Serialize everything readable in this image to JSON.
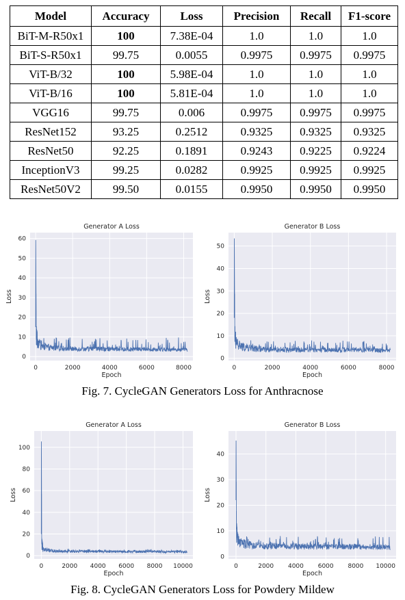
{
  "table": {
    "headers": [
      "Model",
      "Accuracy",
      "Loss",
      "Precision",
      "Recall",
      "F1-score"
    ],
    "rows": [
      {
        "model": "BiT-M-R50x1",
        "accuracy": "100",
        "loss": "7.38E-04",
        "precision": "1.0",
        "recall": "1.0",
        "f1": "1.0",
        "bold_acc": true
      },
      {
        "model": "BiT-S-R50x1",
        "accuracy": "99.75",
        "loss": "0.0055",
        "precision": "0.9975",
        "recall": "0.9975",
        "f1": "0.9975",
        "bold_acc": false
      },
      {
        "model": "ViT-B/32",
        "accuracy": "100",
        "loss": "5.98E-04",
        "precision": "1.0",
        "recall": "1.0",
        "f1": "1.0",
        "bold_acc": true
      },
      {
        "model": "ViT-B/16",
        "accuracy": "100",
        "loss": "5.81E-04",
        "precision": "1.0",
        "recall": "1.0",
        "f1": "1.0",
        "bold_acc": true
      },
      {
        "model": "VGG16",
        "accuracy": "99.75",
        "loss": "0.006",
        "precision": "0.9975",
        "recall": "0.9975",
        "f1": "0.9975",
        "bold_acc": false
      },
      {
        "model": "ResNet152",
        "accuracy": "93.25",
        "loss": "0.2512",
        "precision": "0.9325",
        "recall": "0.9325",
        "f1": "0.9325",
        "bold_acc": false
      },
      {
        "model": "ResNet50",
        "accuracy": "92.25",
        "loss": "0.1891",
        "precision": "0.9243",
        "recall": "0.9225",
        "f1": "0.9224",
        "bold_acc": false
      },
      {
        "model": "InceptionV3",
        "accuracy": "99.25",
        "loss": "0.0282",
        "precision": "0.9925",
        "recall": "0.9925",
        "f1": "0.9925",
        "bold_acc": false
      },
      {
        "model": "ResNet50V2",
        "accuracy": "99.50",
        "loss": "0.0155",
        "precision": "0.9950",
        "recall": "0.9950",
        "f1": "0.9950",
        "bold_acc": false
      }
    ]
  },
  "figures": {
    "fig7_caption": "Fig. 7.  CycleGAN Generators Loss for Anthracnose",
    "fig8_caption": "Fig. 8.  CycleGAN Generators Loss for Powdery Mildew"
  },
  "colors": {
    "line": "#4c72b0",
    "panel": "#eaeaf2",
    "grid": "#ffffff",
    "text": "#262626"
  },
  "chart_data": [
    {
      "type": "line",
      "title": "Generator A Loss",
      "xlabel": "Epoch",
      "ylabel": "Loss",
      "xlim": [
        -300,
        8500
      ],
      "ylim": [
        -2,
        63
      ],
      "xticks": [
        0,
        2000,
        4000,
        6000,
        8000
      ],
      "yticks": [
        0,
        10,
        20,
        30,
        40,
        50,
        60
      ],
      "grid": true,
      "series": [
        {
          "x": [
            0,
            5,
            30,
            100,
            300,
            600,
            1000,
            2000,
            3000,
            4000,
            5000,
            6000,
            7000,
            8000,
            8200
          ],
          "values": [
            15,
            60,
            12,
            8,
            6,
            5,
            4.5,
            4,
            4,
            4,
            3.8,
            3.8,
            3.8,
            3.6,
            3.5
          ],
          "noise_band": [
            2,
            10
          ]
        }
      ]
    },
    {
      "type": "line",
      "title": "Generator B Loss",
      "xlabel": "Epoch",
      "ylabel": "Loss",
      "xlim": [
        -300,
        8500
      ],
      "ylim": [
        -1,
        56
      ],
      "xticks": [
        0,
        2000,
        4000,
        6000,
        8000
      ],
      "yticks": [
        0,
        10,
        20,
        30,
        40,
        50
      ],
      "grid": true,
      "series": [
        {
          "x": [
            0,
            5,
            30,
            100,
            300,
            600,
            1000,
            2000,
            3000,
            4000,
            5000,
            6000,
            7000,
            8000,
            8200
          ],
          "values": [
            18,
            54,
            11,
            7,
            5.5,
            5,
            4.5,
            4,
            4,
            3.8,
            3.8,
            3.8,
            3.8,
            3.6,
            3.5
          ],
          "noise_band": [
            2,
            8
          ]
        }
      ]
    },
    {
      "type": "line",
      "title": "Generator A Loss",
      "xlabel": "Epoch",
      "ylabel": "Loss",
      "xlim": [
        -500,
        10700
      ],
      "ylim": [
        -3,
        115
      ],
      "xticks": [
        0,
        2000,
        4000,
        6000,
        8000,
        10000
      ],
      "yticks": [
        0,
        20,
        40,
        60,
        80,
        100
      ],
      "grid": true,
      "series": [
        {
          "x": [
            0,
            5,
            30,
            100,
            300,
            600,
            1000,
            2000,
            4000,
            6000,
            8000,
            10000,
            10300
          ],
          "values": [
            20,
            110,
            12,
            8,
            6,
            5,
            4.5,
            4.2,
            4,
            3.8,
            3.8,
            3.6,
            3.5
          ],
          "noise_band": [
            2,
            6
          ]
        }
      ]
    },
    {
      "type": "line",
      "title": "Generator B Loss",
      "xlabel": "Epoch",
      "ylabel": "Loss",
      "xlim": [
        -500,
        10700
      ],
      "ylim": [
        -1,
        49
      ],
      "xticks": [
        0,
        2000,
        4000,
        6000,
        8000,
        10000
      ],
      "yticks": [
        0,
        10,
        20,
        30,
        40
      ],
      "grid": true,
      "series": [
        {
          "x": [
            0,
            5,
            30,
            100,
            300,
            600,
            1000,
            2000,
            4000,
            6000,
            8000,
            10000,
            10300
          ],
          "values": [
            22,
            47,
            10,
            7,
            5.5,
            5,
            4.5,
            4.2,
            4,
            3.8,
            3.8,
            3.6,
            3.5
          ],
          "noise_band": [
            2,
            8
          ]
        }
      ]
    }
  ]
}
